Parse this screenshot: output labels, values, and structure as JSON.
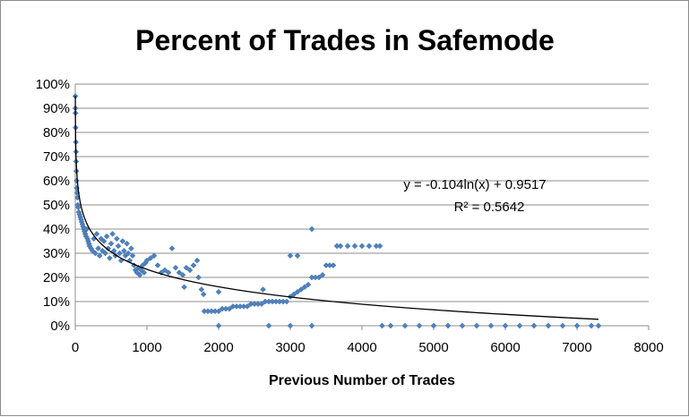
{
  "chart_data": {
    "type": "scatter",
    "title": "Percent of Trades in Safemode",
    "xlabel": "Previous Number of Trades",
    "ylabel": "",
    "xlim": [
      0,
      8000
    ],
    "ylim": [
      0,
      1
    ],
    "x_ticks": [
      0,
      1000,
      2000,
      3000,
      4000,
      5000,
      6000,
      7000,
      8000
    ],
    "y_ticks": [
      0,
      0.1,
      0.2,
      0.3,
      0.4,
      0.5,
      0.6,
      0.7,
      0.8,
      0.9,
      1.0
    ],
    "y_tick_labels": [
      "0%",
      "10%",
      "20%",
      "30%",
      "40%",
      "50%",
      "60%",
      "70%",
      "80%",
      "90%",
      "100%"
    ],
    "grid": true,
    "legend": "none",
    "marker_color": "#4f81bd",
    "trendline": {
      "type": "logarithmic",
      "a": -0.104,
      "b": 0.9517,
      "x_range": [
        1,
        7300
      ],
      "equation_label": "y = -0.104ln(x) + 0.9517",
      "r2_label": "R² = 0.5642",
      "color": "#000000"
    },
    "series": [
      {
        "points": [
          [
            1,
            0.95
          ],
          [
            2,
            0.9
          ],
          [
            3,
            0.88
          ],
          [
            5,
            0.82
          ],
          [
            8,
            0.76
          ],
          [
            10,
            0.72
          ],
          [
            12,
            0.68
          ],
          [
            15,
            0.64
          ],
          [
            18,
            0.6
          ],
          [
            20,
            0.57
          ],
          [
            25,
            0.55
          ],
          [
            30,
            0.53
          ],
          [
            35,
            0.5
          ],
          [
            40,
            0.49
          ],
          [
            50,
            0.47
          ],
          [
            60,
            0.46
          ],
          [
            70,
            0.45
          ],
          [
            80,
            0.44
          ],
          [
            90,
            0.43
          ],
          [
            100,
            0.42
          ],
          [
            110,
            0.41
          ],
          [
            120,
            0.4
          ],
          [
            130,
            0.39
          ],
          [
            140,
            0.38
          ],
          [
            150,
            0.37
          ],
          [
            160,
            0.4
          ],
          [
            170,
            0.36
          ],
          [
            180,
            0.35
          ],
          [
            190,
            0.34
          ],
          [
            200,
            0.33
          ],
          [
            220,
            0.32
          ],
          [
            240,
            0.31
          ],
          [
            260,
            0.36
          ],
          [
            280,
            0.3
          ],
          [
            300,
            0.38
          ],
          [
            320,
            0.32
          ],
          [
            340,
            0.29
          ],
          [
            360,
            0.36
          ],
          [
            380,
            0.31
          ],
          [
            400,
            0.35
          ],
          [
            420,
            0.3
          ],
          [
            440,
            0.37
          ],
          [
            460,
            0.32
          ],
          [
            480,
            0.28
          ],
          [
            500,
            0.34
          ],
          [
            520,
            0.38
          ],
          [
            540,
            0.31
          ],
          [
            560,
            0.29
          ],
          [
            580,
            0.36
          ],
          [
            600,
            0.33
          ],
          [
            620,
            0.3
          ],
          [
            640,
            0.27
          ],
          [
            660,
            0.35
          ],
          [
            680,
            0.31
          ],
          [
            700,
            0.29
          ],
          [
            720,
            0.34
          ],
          [
            740,
            0.3
          ],
          [
            760,
            0.27
          ],
          [
            780,
            0.32
          ],
          [
            800,
            0.29
          ],
          [
            820,
            0.25
          ],
          [
            840,
            0.23
          ],
          [
            860,
            0.22
          ],
          [
            880,
            0.24
          ],
          [
            900,
            0.21
          ],
          [
            920,
            0.23
          ],
          [
            940,
            0.25
          ],
          [
            960,
            0.22
          ],
          [
            980,
            0.26
          ],
          [
            1000,
            0.27
          ],
          [
            1050,
            0.28
          ],
          [
            1100,
            0.29
          ],
          [
            1150,
            0.25
          ],
          [
            1200,
            0.22
          ],
          [
            1250,
            0.23
          ],
          [
            1300,
            0.22
          ],
          [
            1350,
            0.32
          ],
          [
            1400,
            0.24
          ],
          [
            1450,
            0.22
          ],
          [
            1500,
            0.21
          ],
          [
            1520,
            0.16
          ],
          [
            1550,
            0.24
          ],
          [
            1600,
            0.23
          ],
          [
            1650,
            0.25
          ],
          [
            1700,
            0.27
          ],
          [
            1720,
            0.2
          ],
          [
            1760,
            0.15
          ],
          [
            1790,
            0.13
          ],
          [
            1800,
            0.06
          ],
          [
            1850,
            0.06
          ],
          [
            1900,
            0.06
          ],
          [
            1950,
            0.06
          ],
          [
            2000,
            0.06
          ],
          [
            2000,
            0.14
          ],
          [
            2050,
            0.07
          ],
          [
            2100,
            0.07
          ],
          [
            2150,
            0.07
          ],
          [
            2200,
            0.08
          ],
          [
            2250,
            0.08
          ],
          [
            2300,
            0.08
          ],
          [
            2350,
            0.08
          ],
          [
            2400,
            0.08
          ],
          [
            2450,
            0.09
          ],
          [
            2500,
            0.09
          ],
          [
            2550,
            0.09
          ],
          [
            2600,
            0.09
          ],
          [
            2620,
            0.15
          ],
          [
            2650,
            0.1
          ],
          [
            2700,
            0.1
          ],
          [
            2750,
            0.1
          ],
          [
            2800,
            0.1
          ],
          [
            2850,
            0.1
          ],
          [
            2900,
            0.1
          ],
          [
            2950,
            0.1
          ],
          [
            3000,
            0.12
          ],
          [
            3050,
            0.13
          ],
          [
            3100,
            0.14
          ],
          [
            3150,
            0.15
          ],
          [
            3200,
            0.16
          ],
          [
            3250,
            0.17
          ],
          [
            3300,
            0.2
          ],
          [
            3350,
            0.2
          ],
          [
            3400,
            0.2
          ],
          [
            3450,
            0.21
          ],
          [
            3500,
            0.25
          ],
          [
            3550,
            0.25
          ],
          [
            3600,
            0.25
          ],
          [
            3650,
            0.33
          ],
          [
            3700,
            0.33
          ],
          [
            3800,
            0.33
          ],
          [
            3900,
            0.33
          ],
          [
            4000,
            0.33
          ],
          [
            4100,
            0.33
          ],
          [
            4200,
            0.33
          ],
          [
            4250,
            0.33
          ],
          [
            3300,
            0.4
          ],
          [
            3000,
            0.29
          ],
          [
            3100,
            0.29
          ],
          [
            2000,
            0.0
          ],
          [
            2700,
            0.0
          ],
          [
            3000,
            0.0
          ],
          [
            3300,
            0.0
          ],
          [
            4280,
            0.0
          ],
          [
            4400,
            0.0
          ],
          [
            4600,
            0.0
          ],
          [
            4800,
            0.0
          ],
          [
            5000,
            0.0
          ],
          [
            5200,
            0.0
          ],
          [
            5400,
            0.0
          ],
          [
            5600,
            0.0
          ],
          [
            5800,
            0.0
          ],
          [
            6000,
            0.0
          ],
          [
            6200,
            0.0
          ],
          [
            6400,
            0.0
          ],
          [
            6600,
            0.0
          ],
          [
            6800,
            0.0
          ],
          [
            7000,
            0.0
          ],
          [
            7200,
            0.0
          ],
          [
            7300,
            0.0
          ]
        ]
      }
    ]
  }
}
